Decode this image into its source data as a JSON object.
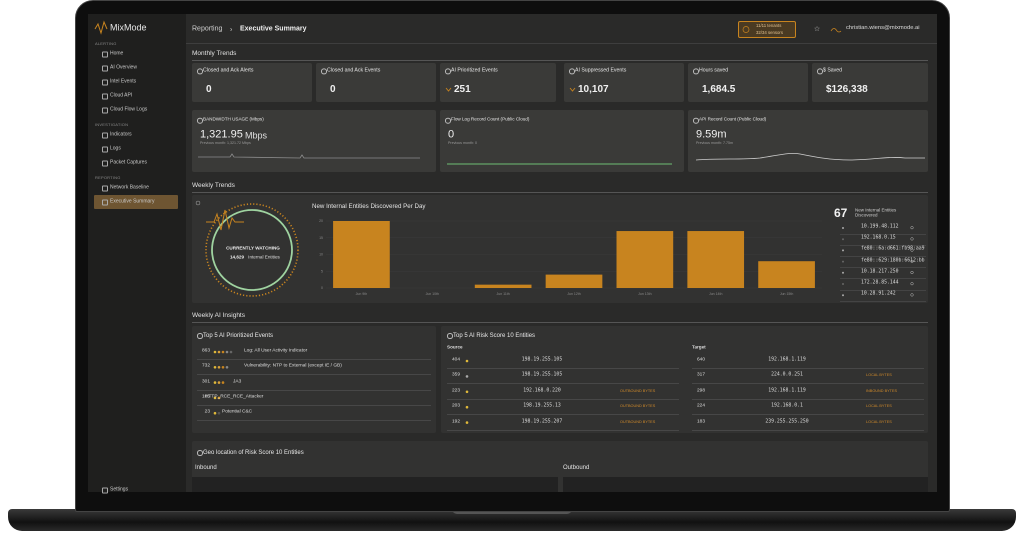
{
  "sidebar": {
    "brand": "MixMode",
    "sections": [
      {
        "title": "ALERTING",
        "items": [
          "Home",
          "AI Overview",
          "Intel Events",
          "Cloud API",
          "Cloud Flow Logs"
        ]
      },
      {
        "title": "INVESTIGATION",
        "items": [
          "Indicators",
          "Logs",
          "Packet Captures"
        ]
      },
      {
        "title": "REPORTING",
        "items": [
          "Network Baseline",
          "Executive Summary"
        ]
      }
    ],
    "footer": "Settings"
  },
  "header": {
    "section": "Reporting",
    "page": "Executive Summary",
    "tenants": "11/11 tenants",
    "sensors": "32/34 sensors",
    "user": "christian.wiens@mixmode.ai"
  },
  "monthly": {
    "title": "Monthly Trends",
    "cards": [
      {
        "label": "Closed and Ack Alerts",
        "value": "0"
      },
      {
        "label": "Closed and Ack Events",
        "value": "0"
      },
      {
        "label": "AI Prioritized Events",
        "value": "251"
      },
      {
        "label": "AI Suppressed Events",
        "value": "10,107"
      },
      {
        "label": "Hours saved",
        "value": "1,684.5"
      },
      {
        "label": "$ Saved",
        "value": "$126,338"
      }
    ],
    "usage": [
      {
        "label": "BANDWIDTH USAGE (Mbps)",
        "value": "1,321.95",
        "unit": "Mbps",
        "previous": "Previous month: 1,321.72 Mbps"
      },
      {
        "label": "Flow Log Record Count (Public Cloud)",
        "value": "0",
        "previous": "Previous month: 0"
      },
      {
        "label": "API Record Count (Public Cloud)",
        "value": "9.59m",
        "previous": "Previous month: 7.75m"
      }
    ]
  },
  "weekly": {
    "title": "Weekly Trends",
    "watching": "CURRENTLY WATCHING",
    "watch_count": "14,629",
    "watch_label": "Internal Entities",
    "entity_count": "67",
    "entity_label": "New Internal Entities Discovered",
    "entities": [
      "10.199.48.112",
      "192.168.0.15",
      "fe80::6a:d661:fb98:aa9",
      "fe80::629:180b:6612:bb",
      "10.18.217.250",
      "172.28.85.144",
      "10.28.91.242"
    ]
  },
  "chart_data": {
    "type": "bar",
    "title": "New Internal Entities Discovered Per Day",
    "categories": [
      "Jun 9th",
      "Jun 10th",
      "Jun 11th",
      "Jun 12th",
      "Jun 13th",
      "Jun 14th",
      "Jun 15th"
    ],
    "values": [
      20,
      0,
      1,
      4,
      17,
      17,
      8
    ],
    "color": "#c8841f",
    "ylim": [
      0,
      20
    ],
    "yticks": [
      0,
      5,
      10,
      15,
      20
    ]
  },
  "insights": {
    "title": "Weekly AI Insights",
    "events_title": "Top 5 AI Prioritized Events",
    "events": [
      {
        "count": "863",
        "name": "Log: All User Activity Indicator"
      },
      {
        "count": "732",
        "name": "Vulnerability: NTP to External (except IE / GB)"
      },
      {
        "count": "301",
        "name": "JA3"
      },
      {
        "count": "105",
        "name": "HTTP_RCE_RCE_Attacker"
      },
      {
        "count": "23",
        "name": "Potential C&C"
      }
    ],
    "risk_title": "Top 5 AI Risk Score 10 Entities",
    "source_label": "Source",
    "target_label": "Target",
    "source": [
      {
        "score": "404",
        "ip": "198.19.255.105"
      },
      {
        "score": "359",
        "ip": "198.19.255.105"
      },
      {
        "score": "223",
        "ip": "192.168.0.220",
        "tag": "OUTBOUND BYTES"
      },
      {
        "score": "203",
        "ip": "198.19.255.13",
        "tag": "OUTBOUND BYTES"
      },
      {
        "score": "192",
        "ip": "198.19.255.207",
        "tag": "OUTBOUND BYTES"
      }
    ],
    "target": [
      {
        "score": "640",
        "ip": "192.168.1.119"
      },
      {
        "score": "317",
        "ip": "224.0.0.251",
        "tag": "LOCAL BYTES"
      },
      {
        "score": "298",
        "ip": "192.168.1.119",
        "tag": "INBOUND BYTES"
      },
      {
        "score": "224",
        "ip": "192.168.0.1",
        "tag": "LOCAL BYTES"
      },
      {
        "score": "183",
        "ip": "239.255.255.250",
        "tag": "LOCAL BYTES"
      }
    ]
  },
  "geo": {
    "title": "Geo location of Risk Score 10 Entities",
    "inbound": "Inbound",
    "outbound": "Outbound"
  }
}
